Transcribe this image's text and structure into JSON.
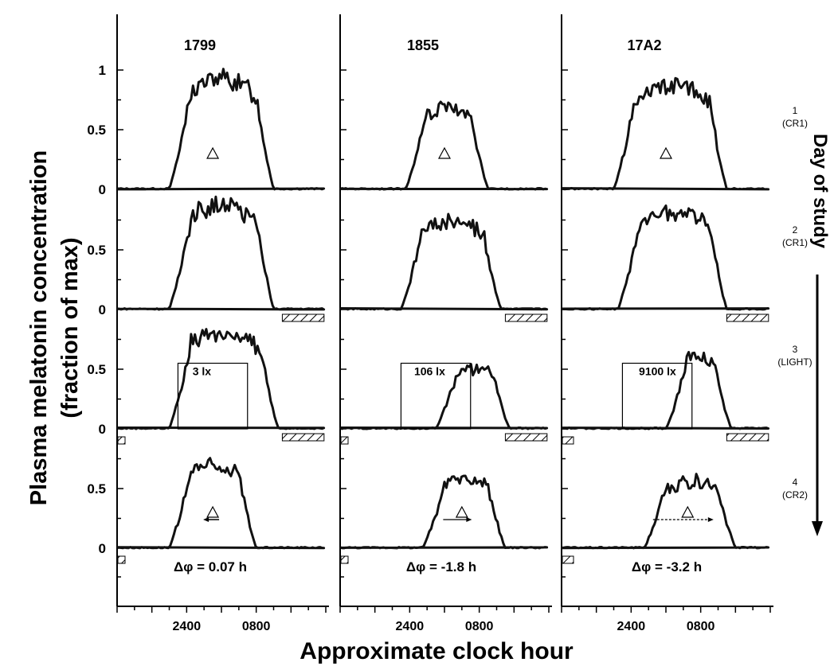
{
  "chart_data": {
    "type": "line",
    "title": "",
    "xlabel": "Approximate clock hour",
    "ylabel_line1": "Plasma melatonin concentration",
    "ylabel_line2": "(fraction of max)",
    "right_label": "Day of study",
    "x_tick_labels": [
      "2400",
      "0800"
    ],
    "y_tick_labels": [
      "0",
      "0.5",
      "1"
    ],
    "ylim_per_day": [
      0,
      1
    ],
    "subjects": [
      "1799",
      "1855",
      "17A2"
    ],
    "days": [
      {
        "num": "1",
        "cond": "(CR1)"
      },
      {
        "num": "2",
        "cond": "(CR1)"
      },
      {
        "num": "3",
        "cond": "(LIGHT)"
      },
      {
        "num": "4",
        "cond": "(CR2)"
      }
    ],
    "light_labels": [
      "3 lx",
      "106 lx",
      "9100 lx"
    ],
    "phase_shifts": [
      "Δφ = 0.07 h",
      "Δφ = -1.8 h",
      "Δφ = -3.2 h"
    ],
    "series": [
      {
        "subject": "1799",
        "day": 1,
        "peak": 1.0,
        "onset_hour": 22.0,
        "offset_hour": 10.0,
        "midpoint_marker_hour": 3.0
      },
      {
        "subject": "1799",
        "day": 2,
        "peak": 0.95,
        "onset_hour": 22.0,
        "offset_hour": 10.0
      },
      {
        "subject": "1799",
        "day": 3,
        "peak": 0.88,
        "onset_hour": 22.0,
        "offset_hour": 10.5,
        "light_exposure": "3 lx"
      },
      {
        "subject": "1799",
        "day": 4,
        "peak": 0.75,
        "onset_hour": 22.0,
        "offset_hour": 8.0,
        "midpoint_marker_hour": 3.0
      },
      {
        "subject": "1855",
        "day": 1,
        "peak": 0.74,
        "onset_hour": 23.5,
        "offset_hour": 9.0,
        "midpoint_marker_hour": 4.0
      },
      {
        "subject": "1855",
        "day": 2,
        "peak": 0.8,
        "onset_hour": 23.0,
        "offset_hour": 10.5
      },
      {
        "subject": "1855",
        "day": 3,
        "peak": 0.55,
        "onset_hour": 3.0,
        "offset_hour": 11.5,
        "light_exposure": "106 lx"
      },
      {
        "subject": "1855",
        "day": 4,
        "peak": 0.63,
        "onset_hour": 1.5,
        "offset_hour": 11.0,
        "midpoint_marker_hour": 6.0
      },
      {
        "subject": "17A2",
        "day": 1,
        "peak": 0.93,
        "onset_hour": 22.0,
        "offset_hour": 11.0,
        "midpoint_marker_hour": 4.0
      },
      {
        "subject": "17A2",
        "day": 2,
        "peak": 0.89,
        "onset_hour": 22.5,
        "offset_hour": 11.0
      },
      {
        "subject": "17A2",
        "day": 3,
        "peak": 0.66,
        "onset_hour": 4.0,
        "offset_hour": 11.5,
        "light_exposure": "9100 lx"
      },
      {
        "subject": "17A2",
        "day": 4,
        "peak": 0.6,
        "onset_hour": 1.5,
        "offset_hour": 12.0,
        "midpoint_marker_hour": 6.5
      }
    ]
  }
}
